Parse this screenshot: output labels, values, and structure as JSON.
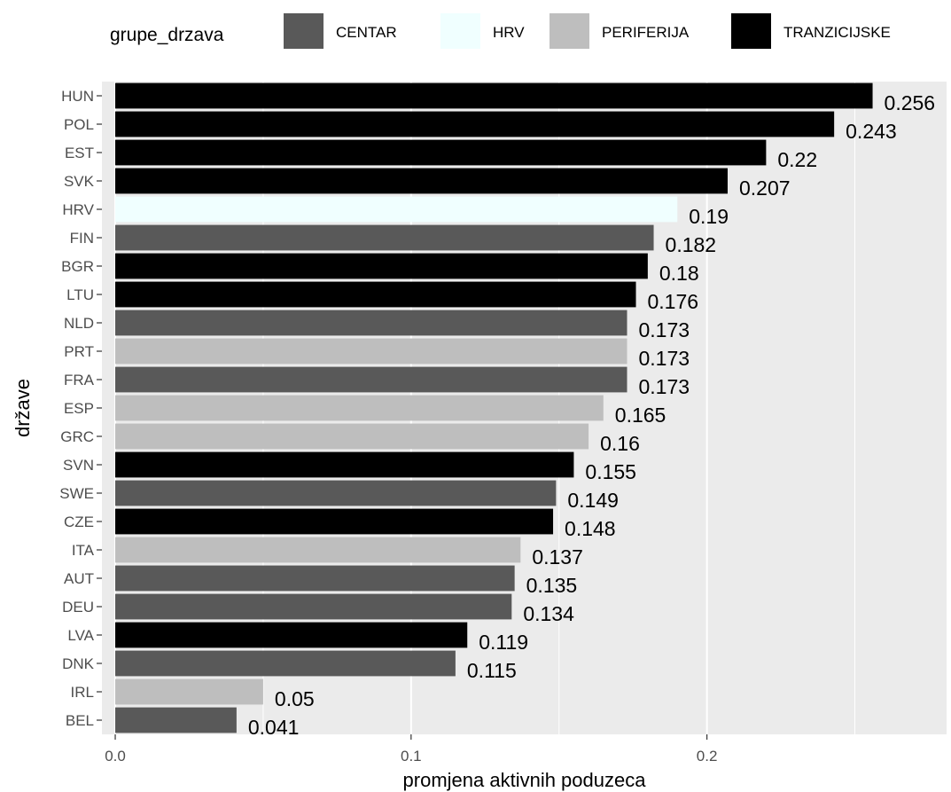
{
  "chart_data": {
    "type": "bar",
    "orientation": "horizontal",
    "xlabel": "promjena aktivnih poduzeca",
    "ylabel": "države",
    "xlim": [
      -0.0045,
      0.281
    ],
    "x_ticks": [
      0.0,
      0.1,
      0.2
    ],
    "x_tick_labels": [
      "0.0",
      "0.1",
      "0.2"
    ],
    "grid": true,
    "legend": {
      "title": "grupe_drzava",
      "position": "top",
      "entries": [
        {
          "name": "CENTAR",
          "color": "#595959"
        },
        {
          "name": "HRV",
          "color": "#f0ffff"
        },
        {
          "name": "PERIFERIJA",
          "color": "#bebebe"
        },
        {
          "name": "TRANZICIJSKE",
          "color": "#000000"
        }
      ]
    },
    "categories": [
      "HUN",
      "POL",
      "EST",
      "SVK",
      "HRV",
      "FIN",
      "BGR",
      "LTU",
      "NLD",
      "PRT",
      "FRA",
      "ESP",
      "GRC",
      "SVN",
      "SWE",
      "CZE",
      "ITA",
      "AUT",
      "DEU",
      "LVA",
      "DNK",
      "IRL",
      "BEL"
    ],
    "values": [
      0.256,
      0.243,
      0.22,
      0.207,
      0.19,
      0.182,
      0.18,
      0.176,
      0.173,
      0.173,
      0.173,
      0.165,
      0.16,
      0.155,
      0.149,
      0.148,
      0.137,
      0.135,
      0.134,
      0.119,
      0.115,
      0.05,
      0.041
    ],
    "groups": [
      "TRANZICIJSKE",
      "TRANZICIJSKE",
      "TRANZICIJSKE",
      "TRANZICIJSKE",
      "HRV",
      "CENTAR",
      "TRANZICIJSKE",
      "TRANZICIJSKE",
      "CENTAR",
      "PERIFERIJA",
      "CENTAR",
      "PERIFERIJA",
      "PERIFERIJA",
      "TRANZICIJSKE",
      "CENTAR",
      "TRANZICIJSKE",
      "PERIFERIJA",
      "CENTAR",
      "CENTAR",
      "TRANZICIJSKE",
      "CENTAR",
      "PERIFERIJA",
      "CENTAR"
    ],
    "data_labels": [
      "0.256",
      "0.243",
      "0.22",
      "0.207",
      "0.19",
      "0.182",
      "0.18",
      "0.176",
      "0.173",
      "0.173",
      "0.173",
      "0.165",
      "0.16",
      "0.155",
      "0.149",
      "0.148",
      "0.137",
      "0.135",
      "0.134",
      "0.119",
      "0.115",
      "0.05",
      "0.041"
    ]
  }
}
